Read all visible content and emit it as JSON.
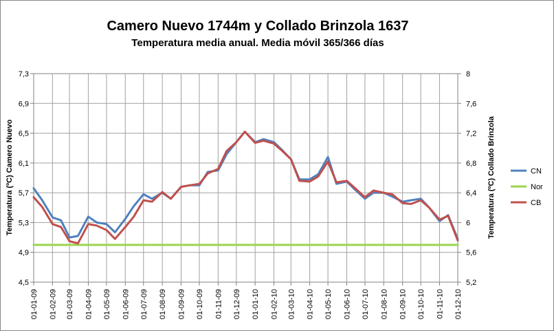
{
  "chart_data": {
    "type": "line",
    "title": "Camero Nuevo 1744m y Collado Brinzola 1637",
    "subtitle": "Temperatura media anual. Media móvil 365/366 días",
    "ylabel": "Temperatura (ºC) Camero Nuevo",
    "y2label": "Temperatura (ºC) Collado Brinzola",
    "ylim": [
      4.5,
      7.3
    ],
    "y2lim": [
      5.2,
      8
    ],
    "yticks": [
      "4,5",
      "4,9",
      "5,3",
      "5,7",
      "6,1",
      "6,5",
      "6,9",
      "7,3"
    ],
    "y2ticks": [
      "5,2",
      "5,6",
      "6",
      "6,4",
      "6,8",
      "7,2",
      "7,6",
      "8"
    ],
    "x_dates": [
      "01-01-09",
      "01-02-09",
      "01-03-09",
      "01-04-09",
      "01-05-09",
      "01-06-09",
      "01-07-09",
      "01-08-09",
      "01-09-09",
      "01-10-09",
      "01-11-09",
      "01-12-09",
      "01-01-10",
      "01-02-10",
      "01-03-10",
      "01-04-10",
      "01-05-10",
      "01-06-10",
      "01-07-10",
      "01-08-10",
      "01-09-10",
      "01-10-10",
      "01-11-10",
      "01-12-10"
    ],
    "legend_position": "right",
    "grid": true,
    "series": [
      {
        "name": "CN",
        "axis": "left",
        "color": "#4F81BD",
        "x": [
          "01-01-09",
          "15-01-09",
          "01-02-09",
          "15-02-09",
          "01-03-09",
          "15-03-09",
          "01-04-09",
          "15-04-09",
          "01-05-09",
          "15-05-09",
          "01-06-09",
          "15-06-09",
          "01-07-09",
          "15-07-09",
          "01-08-09",
          "15-08-09",
          "01-09-09",
          "15-09-09",
          "01-10-09",
          "15-10-09",
          "01-11-09",
          "15-11-09",
          "01-12-09",
          "15-12-09",
          "01-01-10",
          "15-01-10",
          "01-02-10",
          "15-02-10",
          "01-03-10",
          "15-03-10",
          "01-04-10",
          "15-04-10",
          "01-05-10",
          "15-05-10",
          "01-06-10",
          "15-06-10",
          "01-07-10",
          "15-07-10",
          "01-08-10",
          "15-08-10",
          "01-09-10",
          "15-09-10",
          "01-10-10",
          "15-10-10",
          "01-11-10",
          "15-11-10",
          "01-12-10"
        ],
        "y": [
          5.76,
          5.6,
          5.37,
          5.33,
          5.1,
          5.12,
          5.38,
          5.3,
          5.28,
          5.17,
          5.35,
          5.52,
          5.68,
          5.62,
          5.7,
          5.62,
          5.78,
          5.8,
          5.8,
          5.98,
          6.0,
          6.22,
          6.38,
          6.52,
          6.38,
          6.42,
          6.38,
          6.27,
          6.15,
          5.88,
          5.88,
          5.95,
          6.18,
          5.82,
          5.85,
          5.74,
          5.62,
          5.7,
          5.7,
          5.65,
          5.58,
          5.6,
          5.62,
          5.5,
          5.32,
          5.4,
          5.08
        ]
      },
      {
        "name": "Nor",
        "axis": "left",
        "color": "#9BD54C",
        "x": [
          "01-01-09",
          "01-12-10"
        ],
        "y": [
          5.0,
          5.0
        ]
      },
      {
        "name": "CB",
        "axis": "right",
        "color": "#C0504D",
        "x": [
          "01-01-09",
          "15-01-09",
          "01-02-09",
          "15-02-09",
          "01-03-09",
          "15-03-09",
          "01-04-09",
          "15-04-09",
          "01-05-09",
          "15-05-09",
          "01-06-09",
          "15-06-09",
          "01-07-09",
          "15-07-09",
          "01-08-09",
          "15-08-09",
          "01-09-09",
          "15-09-09",
          "01-10-09",
          "15-10-09",
          "01-11-09",
          "15-11-09",
          "01-12-09",
          "15-12-09",
          "01-01-10",
          "15-01-10",
          "01-02-10",
          "15-02-10",
          "01-03-10",
          "15-03-10",
          "01-04-10",
          "15-04-10",
          "01-05-10",
          "15-05-10",
          "01-06-10",
          "15-06-10",
          "01-07-10",
          "15-07-10",
          "01-08-10",
          "15-08-10",
          "01-09-10",
          "15-09-10",
          "01-10-10",
          "15-10-10",
          "01-11-10",
          "15-11-10",
          "01-12-10"
        ],
        "y": [
          6.34,
          6.21,
          5.98,
          5.94,
          5.75,
          5.72,
          5.98,
          5.96,
          5.9,
          5.78,
          5.94,
          6.08,
          6.3,
          6.28,
          6.41,
          6.32,
          6.48,
          6.5,
          6.52,
          6.66,
          6.72,
          6.96,
          7.08,
          7.22,
          7.07,
          7.1,
          7.06,
          6.96,
          6.85,
          6.56,
          6.55,
          6.62,
          6.82,
          6.54,
          6.56,
          6.46,
          6.34,
          6.43,
          6.4,
          6.38,
          6.26,
          6.25,
          6.3,
          6.2,
          6.04,
          6.09,
          5.76
        ]
      }
    ]
  }
}
